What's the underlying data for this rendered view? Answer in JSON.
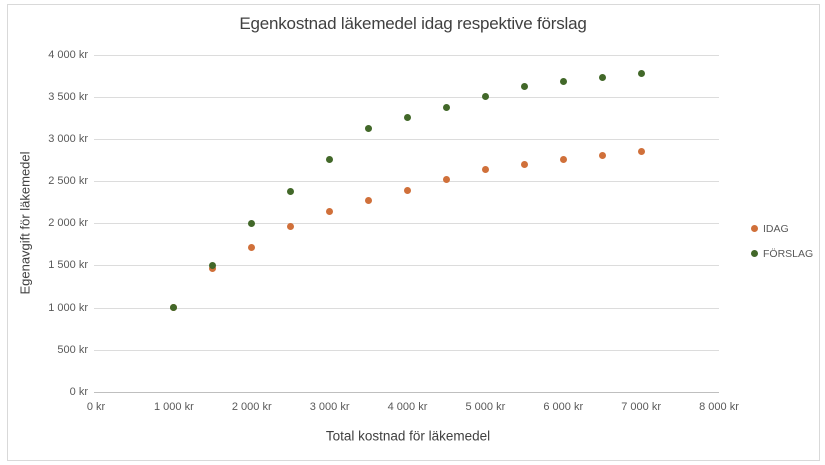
{
  "chart_data": {
    "type": "scatter",
    "title": "Egenkostnad läkemedel idag respektive förslag",
    "xlabel": "Total kostnad för läkemedel",
    "ylabel": "Egenavgift för läkemedel",
    "xlim": [
      0,
      8000
    ],
    "ylim": [
      0,
      4000
    ],
    "x_tick_step": 1000,
    "y_tick_step": 500,
    "x_ticks": [
      "0 kr",
      "1 000 kr",
      "2 000 kr",
      "3 000 kr",
      "4 000 kr",
      "5 000 kr",
      "6 000 kr",
      "7 000 kr",
      "8 000 kr"
    ],
    "y_ticks": [
      "0 kr",
      "500 kr",
      "1 000 kr",
      "1 500 kr",
      "2 000 kr",
      "2 500 kr",
      "3 000 kr",
      "3 500 kr",
      "4 000 kr"
    ],
    "grid": "horizontal",
    "legend_position": "right",
    "x": [
      1000,
      1500,
      2000,
      2500,
      3000,
      3500,
      4000,
      4500,
      5000,
      5500,
      6000,
      6500,
      7000
    ],
    "series": [
      {
        "name": "IDAG",
        "color": "#D0703A",
        "values": [
          1000,
          1462.5,
          1712.5,
          1962.5,
          2142.5,
          2267.5,
          2392.5,
          2517.5,
          2642.5,
          2700,
          2750,
          2800,
          2850
        ]
      },
      {
        "name": "FÖRSLAG",
        "color": "#426829",
        "values": [
          1000,
          1500,
          2000,
          2375,
          2750,
          3125,
          3250,
          3375,
          3500,
          3625,
          3675,
          3725,
          3775
        ]
      }
    ]
  }
}
